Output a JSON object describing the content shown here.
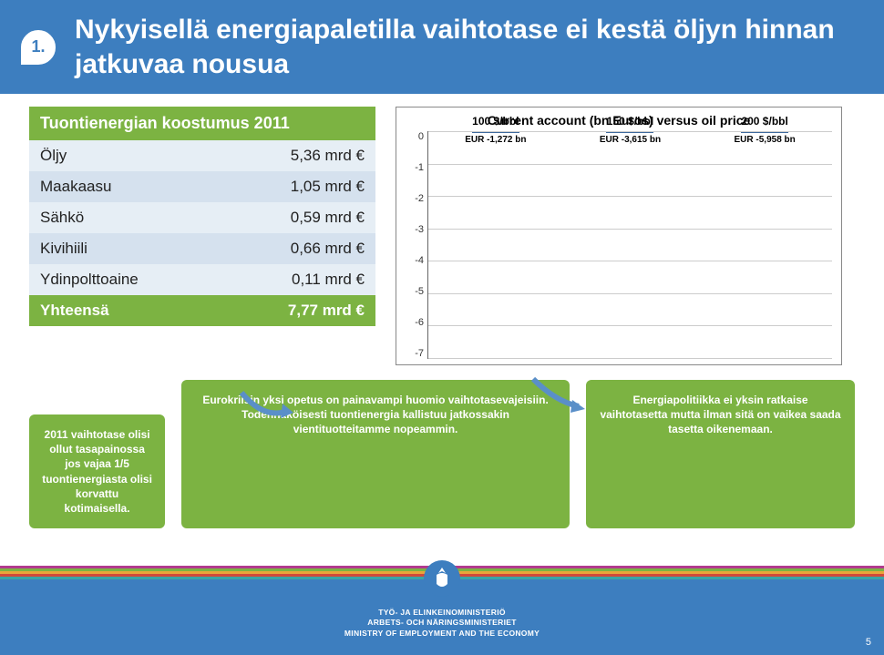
{
  "header": {
    "number": "1.",
    "title": "Nykyisellä energiapaletilla vaihtotase ei kestä öljyn hinnan jatkuvaa nousua",
    "bg_color": "#3d7ebf",
    "text_color": "#ffffff"
  },
  "table": {
    "title": "Tuontienergian koostumus 2011",
    "title_bg": "#7cb342",
    "row_bg_odd": "#e6eef5",
    "row_bg_even": "#d5e1ee",
    "rows": [
      {
        "label": "Öljy",
        "value": "5,36 mrd €"
      },
      {
        "label": "Maakaasu",
        "value": "1,05 mrd €"
      },
      {
        "label": "Sähkö",
        "value": "0,59 mrd €"
      },
      {
        "label": "Kivihiili",
        "value": "0,66 mrd €"
      },
      {
        "label": "Ydinpolttoaine",
        "value": "0,11 mrd €"
      }
    ],
    "total": {
      "label": "Yhteensä",
      "value": "7,77 mrd €"
    }
  },
  "chart": {
    "type": "bar",
    "title": "Current account (bn Euros) versus oil price",
    "categories": [
      "100 $/bbl",
      "150 $/bbl",
      "200 $/bbl"
    ],
    "values": [
      -1.272,
      -3.615,
      -5.958
    ],
    "value_labels": [
      "EUR -1,272 bn",
      "EUR -3,615 bn",
      "EUR -5,958 bn"
    ],
    "ylim": [
      -7,
      0
    ],
    "ytick_step": 1,
    "bar_color": "#5a8fc8",
    "bar_border": "#3d6a9e",
    "grid_color": "#cccccc",
    "title_fontsize": 14,
    "label_fontsize": 12
  },
  "callouts": [
    "2011 vaihtotase olisi ollut tasapainossa jos vajaa 1/5 tuontienergiasta olisi korvattu kotimaisella.",
    "Eurokriisin yksi opetus on painavampi huomio vaihtotasevajeisiin. Todennäköisesti tuontienergia kallistuu jatkossakin vientituotteitamme nopeammin.",
    "Energiapolitiikka ei yksin ratkaise vaihtotasetta mutta ilman sitä on vaikea saada tasetta oikenemaan."
  ],
  "callout_bg": "#7cb342",
  "footer": {
    "stripe_colors": [
      "#b23a8e",
      "#7cb342",
      "#e8a53a",
      "#d14a39",
      "#3aa5a5",
      "#3d7ebf"
    ],
    "ministry_lines": [
      "TYÖ- JA ELINKEINOMINISTERIÖ",
      "ARBETS- OCH NÄRINGSMINISTERIET",
      "MINISTRY OF EMPLOYMENT AND THE ECONOMY"
    ],
    "page_number": "5"
  }
}
